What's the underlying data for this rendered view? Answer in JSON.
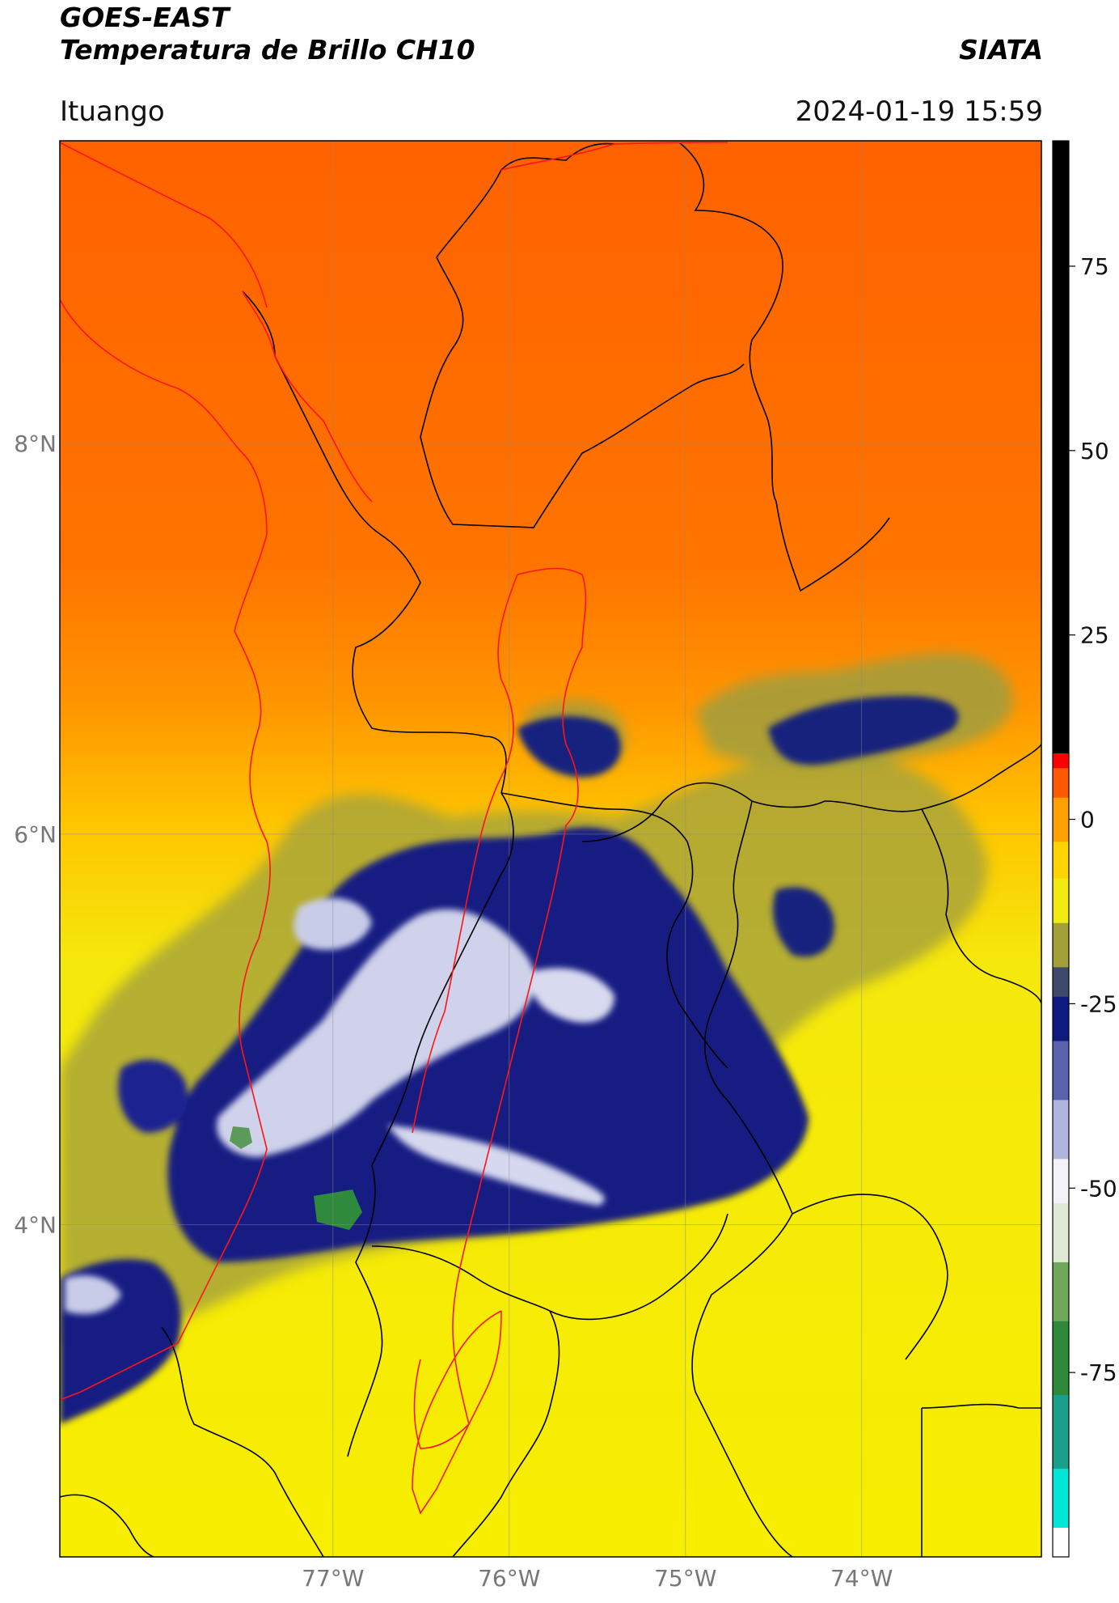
{
  "header": {
    "satellite": "GOES-EAST",
    "product": "Temperatura de Brillo CH10",
    "organization": "SIATA",
    "location": "Ituango",
    "timestamp": "2024-01-19 15:59"
  },
  "map": {
    "lon_ticks": [
      {
        "value": -77,
        "label": "77°W"
      },
      {
        "value": -76,
        "label": "76°W"
      },
      {
        "value": -75,
        "label": "75°W"
      },
      {
        "value": -74,
        "label": "74°W"
      }
    ],
    "lat_ticks": [
      {
        "value": 8,
        "label": "8°N"
      },
      {
        "value": 6,
        "label": "6°N"
      },
      {
        "value": 4,
        "label": "4°N"
      }
    ],
    "extent": {
      "lon_min": -78.55,
      "lon_max": -72.98,
      "lat_min": 2.3,
      "lat_max": 9.55
    },
    "gridlines": true
  },
  "colorbar": {
    "ticks": [
      {
        "value": 75,
        "label": "75"
      },
      {
        "value": 50,
        "label": "50"
      },
      {
        "value": 25,
        "label": "25"
      },
      {
        "value": 0,
        "label": "0"
      },
      {
        "value": -25,
        "label": "-25"
      },
      {
        "value": -50,
        "label": "-50"
      },
      {
        "value": -75,
        "label": "-75"
      }
    ],
    "range": [
      -100,
      92
    ],
    "segments": [
      {
        "from": -100,
        "to": -96,
        "color": "#ffffff"
      },
      {
        "from": -96,
        "to": -88,
        "color": "#00e5d8"
      },
      {
        "from": -88,
        "to": -78,
        "color": "#1aa08a"
      },
      {
        "from": -78,
        "to": -68,
        "color": "#2e8a3a"
      },
      {
        "from": -68,
        "to": -60,
        "color": "#6fa85a"
      },
      {
        "from": -60,
        "to": -52,
        "color": "#dfe9d6"
      },
      {
        "from": -52,
        "to": -46,
        "color": "#f2f2f7"
      },
      {
        "from": -46,
        "to": -38,
        "color": "#b3b6dc"
      },
      {
        "from": -38,
        "to": -30,
        "color": "#5b62ad"
      },
      {
        "from": -30,
        "to": -24,
        "color": "#0e1a7e"
      },
      {
        "from": -24,
        "to": -20,
        "color": "#3d4a6a"
      },
      {
        "from": -20,
        "to": -14,
        "color": "#a3a03a"
      },
      {
        "from": -14,
        "to": -8,
        "color": "#f1ec10"
      },
      {
        "from": -8,
        "to": -3,
        "color": "#ffd400"
      },
      {
        "from": -3,
        "to": 3,
        "color": "#ff9f00"
      },
      {
        "from": 3,
        "to": 7,
        "color": "#ff5a00"
      },
      {
        "from": 7,
        "to": 9,
        "color": "#ff0000"
      },
      {
        "from": 9,
        "to": 92,
        "color": "#000000"
      }
    ]
  }
}
